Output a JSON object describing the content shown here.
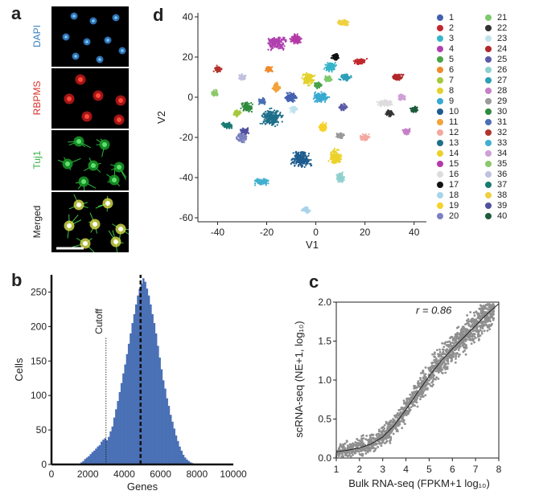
{
  "panel_a": {
    "letter": "a",
    "stains": [
      {
        "label": "DAPI",
        "color": "#3a7fc2"
      },
      {
        "label": "RBPMS",
        "color": "#d9302a"
      },
      {
        "label": "Tuj1",
        "color": "#3db04a"
      },
      {
        "label": "Merged",
        "color": "#222222"
      }
    ]
  },
  "chart_data": [
    {
      "panel": "d",
      "type": "scatter",
      "xlabel": "V1",
      "ylabel": "V2",
      "xlim": [
        -48,
        45
      ],
      "ylim": [
        -62,
        42
      ],
      "xticks": [
        -40,
        -20,
        0,
        20,
        40
      ],
      "yticks": [
        -60,
        -40,
        -20,
        0,
        20,
        40
      ],
      "legend_placement": "right",
      "clusters": [
        {
          "name": "1",
          "color": "#4360b0",
          "cx": -10,
          "cy": 0,
          "rx": 3,
          "ry": 3
        },
        {
          "name": "2",
          "color": "#c1272d",
          "cx": 18,
          "cy": 18,
          "rx": 3,
          "ry": 2
        },
        {
          "name": "3",
          "color": "#36b5c8",
          "cx": 6,
          "cy": 15,
          "rx": 3,
          "ry": 3
        },
        {
          "name": "4",
          "color": "#b040b0",
          "cx": -16,
          "cy": 27,
          "rx": 5,
          "ry": 4
        },
        {
          "name": "5",
          "color": "#4aa347",
          "cx": 1,
          "cy": 6,
          "rx": 2,
          "ry": 2
        },
        {
          "name": "6",
          "color": "#f08a2a",
          "cx": -19,
          "cy": 14,
          "rx": 2,
          "ry": 2
        },
        {
          "name": "7",
          "color": "#a4c93b",
          "cx": -32,
          "cy": -8,
          "rx": 2,
          "ry": 2
        },
        {
          "name": "8",
          "color": "#e3d22b",
          "cx": -3,
          "cy": 9,
          "rx": 3,
          "ry": 4
        },
        {
          "name": "9",
          "color": "#38a9d1",
          "cx": 2,
          "cy": 0,
          "rx": 4,
          "ry": 3
        },
        {
          "name": "10",
          "color": "#1e5c8e",
          "cx": -6,
          "cy": -31,
          "rx": 5,
          "ry": 5
        },
        {
          "name": "11",
          "color": "#f2a33a",
          "cx": -16,
          "cy": 5,
          "rx": 2,
          "ry": 3
        },
        {
          "name": "12",
          "color": "#f4a8a0",
          "cx": 20,
          "cy": -20,
          "rx": 3,
          "ry": 2
        },
        {
          "name": "13",
          "color": "#1f6f8b",
          "cx": -18,
          "cy": -10,
          "rx": 5,
          "ry": 5
        },
        {
          "name": "14",
          "color": "#ecd12a",
          "cx": 8,
          "cy": -30,
          "rx": 3,
          "ry": 5
        },
        {
          "name": "15",
          "color": "#b43aa8",
          "cx": -8,
          "cy": 29,
          "rx": 3,
          "ry": 3
        },
        {
          "name": "16",
          "color": "#dcdcdc",
          "cx": 28,
          "cy": -3,
          "rx": 4,
          "ry": 2
        },
        {
          "name": "17",
          "color": "#111111",
          "cx": 8,
          "cy": 20,
          "rx": 2,
          "ry": 2
        },
        {
          "name": "18",
          "color": "#a8d3ea",
          "cx": -4,
          "cy": -56,
          "rx": 2,
          "ry": 2
        },
        {
          "name": "19",
          "color": "#f6d12a",
          "cx": 3,
          "cy": -15,
          "rx": 2,
          "ry": 3
        },
        {
          "name": "20",
          "color": "#7a80c0",
          "cx": -30,
          "cy": -20,
          "rx": 3,
          "ry": 3
        },
        {
          "name": "21",
          "color": "#7ec96c",
          "cx": 5,
          "cy": 9,
          "rx": 2,
          "ry": 2
        },
        {
          "name": "22",
          "color": "#333333",
          "cx": 30,
          "cy": -8,
          "rx": 2,
          "ry": 2
        },
        {
          "name": "23",
          "color": "#bfe2ec",
          "cx": -9,
          "cy": -6,
          "rx": 2,
          "ry": 2
        },
        {
          "name": "24",
          "color": "#b1282b",
          "cx": 33,
          "cy": 10,
          "rx": 3,
          "ry": 2
        },
        {
          "name": "25",
          "color": "#5a5aa8",
          "cx": 11,
          "cy": -5,
          "rx": 2,
          "ry": 2
        },
        {
          "name": "26",
          "color": "#8fd0cf",
          "cx": 10,
          "cy": -40,
          "rx": 2,
          "ry": 3
        },
        {
          "name": "27",
          "color": "#2e9fb8",
          "cx": 12,
          "cy": 10,
          "rx": 3,
          "ry": 2
        },
        {
          "name": "28",
          "color": "#c77fc7",
          "cx": 37,
          "cy": -17,
          "rx": 2,
          "ry": 2
        },
        {
          "name": "29",
          "color": "#9a9a9a",
          "cx": 10,
          "cy": -19,
          "rx": 2,
          "ry": 2
        },
        {
          "name": "30",
          "color": "#2e8a3e",
          "cx": -28,
          "cy": -5,
          "rx": 3,
          "ry": 3
        },
        {
          "name": "31",
          "color": "#4a6fb5",
          "cx": -22,
          "cy": -2,
          "rx": 2,
          "ry": 2
        },
        {
          "name": "32",
          "color": "#b3332c",
          "cx": -40,
          "cy": 14,
          "rx": 2,
          "ry": 2
        },
        {
          "name": "33",
          "color": "#40b0d0",
          "cx": -22,
          "cy": -42,
          "rx": 4,
          "ry": 2
        },
        {
          "name": "34",
          "color": "#cfa0d8",
          "cx": 35,
          "cy": 0,
          "rx": 2,
          "ry": 2
        },
        {
          "name": "35",
          "color": "#8cc86a",
          "cx": -41,
          "cy": 2,
          "rx": 2,
          "ry": 2
        },
        {
          "name": "36",
          "color": "#c0c0e0",
          "cx": -30,
          "cy": 10,
          "rx": 2,
          "ry": 2
        },
        {
          "name": "37",
          "color": "#1a7a72",
          "cx": -36,
          "cy": -14,
          "rx": 3,
          "ry": 2
        },
        {
          "name": "38",
          "color": "#f0d040",
          "cx": 11,
          "cy": 37,
          "rx": 3,
          "ry": 2
        },
        {
          "name": "39",
          "color": "#5050a0",
          "cx": -29,
          "cy": -17,
          "rx": 2,
          "ry": 2
        },
        {
          "name": "40",
          "color": "#1c5c3a",
          "cx": 40,
          "cy": -6,
          "rx": 2,
          "ry": 2
        }
      ]
    },
    {
      "panel": "b",
      "type": "bar",
      "xlabel": "Genes",
      "ylabel": "Cells",
      "xlim": [
        0,
        10000
      ],
      "ylim": [
        0,
        275
      ],
      "xticks": [
        0,
        2000,
        4000,
        6000,
        8000,
        10000
      ],
      "yticks": [
        0,
        50,
        100,
        150,
        200,
        250
      ],
      "color": "#4a70b5",
      "bin_width": 100,
      "bins": [
        {
          "x": 1600,
          "y": 3
        },
        {
          "x": 1700,
          "y": 5
        },
        {
          "x": 1800,
          "y": 8
        },
        {
          "x": 1900,
          "y": 10
        },
        {
          "x": 2000,
          "y": 12
        },
        {
          "x": 2100,
          "y": 15
        },
        {
          "x": 2200,
          "y": 18
        },
        {
          "x": 2300,
          "y": 20
        },
        {
          "x": 2400,
          "y": 23
        },
        {
          "x": 2500,
          "y": 26
        },
        {
          "x": 2600,
          "y": 28
        },
        {
          "x": 2700,
          "y": 33
        },
        {
          "x": 2800,
          "y": 36
        },
        {
          "x": 2900,
          "y": 38
        },
        {
          "x": 3000,
          "y": 35
        },
        {
          "x": 3100,
          "y": 40
        },
        {
          "x": 3200,
          "y": 48
        },
        {
          "x": 3300,
          "y": 55
        },
        {
          "x": 3400,
          "y": 68
        },
        {
          "x": 3500,
          "y": 80
        },
        {
          "x": 3600,
          "y": 92
        },
        {
          "x": 3700,
          "y": 105
        },
        {
          "x": 3800,
          "y": 118
        },
        {
          "x": 3900,
          "y": 132
        },
        {
          "x": 4000,
          "y": 145
        },
        {
          "x": 4100,
          "y": 160
        },
        {
          "x": 4200,
          "y": 175
        },
        {
          "x": 4300,
          "y": 190
        },
        {
          "x": 4400,
          "y": 205
        },
        {
          "x": 4500,
          "y": 218
        },
        {
          "x": 4600,
          "y": 232
        },
        {
          "x": 4700,
          "y": 245
        },
        {
          "x": 4800,
          "y": 255
        },
        {
          "x": 4900,
          "y": 262
        },
        {
          "x": 5000,
          "y": 270
        },
        {
          "x": 5100,
          "y": 265
        },
        {
          "x": 5200,
          "y": 255
        },
        {
          "x": 5300,
          "y": 245
        },
        {
          "x": 5400,
          "y": 232
        },
        {
          "x": 5500,
          "y": 218
        },
        {
          "x": 5600,
          "y": 205
        },
        {
          "x": 5700,
          "y": 190
        },
        {
          "x": 5800,
          "y": 172
        },
        {
          "x": 5900,
          "y": 155
        },
        {
          "x": 6000,
          "y": 138
        },
        {
          "x": 6100,
          "y": 122
        },
        {
          "x": 6200,
          "y": 110
        },
        {
          "x": 6300,
          "y": 96
        },
        {
          "x": 6400,
          "y": 85
        },
        {
          "x": 6500,
          "y": 72
        },
        {
          "x": 6600,
          "y": 62
        },
        {
          "x": 6700,
          "y": 52
        },
        {
          "x": 6800,
          "y": 42
        },
        {
          "x": 6900,
          "y": 34
        },
        {
          "x": 7000,
          "y": 26
        },
        {
          "x": 7100,
          "y": 20
        },
        {
          "x": 7200,
          "y": 14
        },
        {
          "x": 7300,
          "y": 10
        },
        {
          "x": 7400,
          "y": 7
        },
        {
          "x": 7500,
          "y": 5
        },
        {
          "x": 7600,
          "y": 3
        },
        {
          "x": 7700,
          "y": 2
        },
        {
          "x": 7800,
          "y": 1
        }
      ],
      "annotations": [
        {
          "label": "Cutoff",
          "x": 3000,
          "style": "dotted"
        },
        {
          "label": "",
          "x": 4900,
          "style": "dashed"
        }
      ]
    },
    {
      "panel": "c",
      "type": "scatter",
      "xlabel": "Bulk RNA-seq (FPKM+1 log₁₀)",
      "ylabel": "scRNA-seq (NE+1, log₁₀)",
      "xlim": [
        1,
        8
      ],
      "ylim": [
        0,
        2.0
      ],
      "xticks": [
        1,
        2,
        3,
        4,
        5,
        6,
        7,
        8
      ],
      "yticks": [
        0.0,
        0.5,
        1.0,
        1.5,
        2.0
      ],
      "point_color": "#8f8f8f",
      "annotation": "r = 0.86",
      "fit_curve": [
        {
          "x": 1.0,
          "y": 0.08
        },
        {
          "x": 1.5,
          "y": 0.1
        },
        {
          "x": 2.0,
          "y": 0.13
        },
        {
          "x": 2.5,
          "y": 0.18
        },
        {
          "x": 3.0,
          "y": 0.27
        },
        {
          "x": 3.5,
          "y": 0.42
        },
        {
          "x": 4.0,
          "y": 0.62
        },
        {
          "x": 4.5,
          "y": 0.84
        },
        {
          "x": 5.0,
          "y": 1.05
        },
        {
          "x": 5.5,
          "y": 1.24
        },
        {
          "x": 6.0,
          "y": 1.4
        },
        {
          "x": 6.5,
          "y": 1.55
        },
        {
          "x": 7.0,
          "y": 1.7
        },
        {
          "x": 7.5,
          "y": 1.85
        },
        {
          "x": 8.0,
          "y": 1.98
        }
      ]
    }
  ],
  "panel_letters": {
    "b": "b",
    "c": "c",
    "d": "d"
  }
}
